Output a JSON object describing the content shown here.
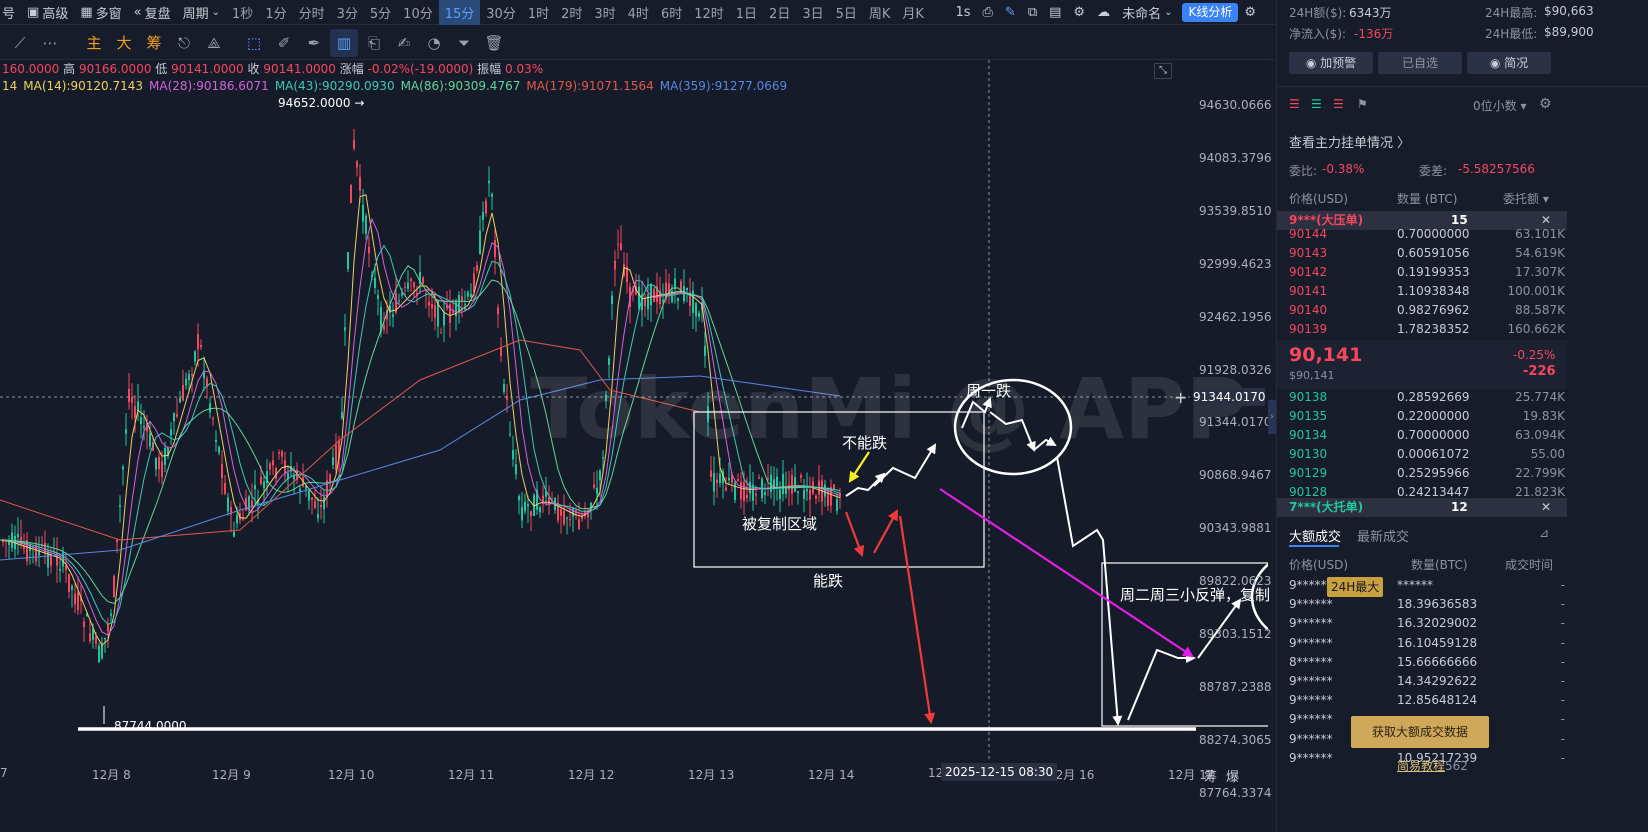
{
  "toolbar": {
    "left_cut": "号",
    "advanced": "高级",
    "multi_window": "多窗",
    "replay": "复盘",
    "period_label": "周期",
    "periods": [
      "1秒",
      "1分",
      "分时",
      "3分",
      "5分",
      "10分",
      "15分",
      "30分",
      "1时",
      "2时",
      "3时",
      "4时",
      "6时",
      "12时",
      "1日",
      "2日",
      "3日",
      "5日",
      "周K",
      "月K"
    ],
    "active_period": "15分",
    "interval_1s": "1s",
    "unnamed": "未命名",
    "k_analysis": "K线分析"
  },
  "drawbar": {
    "text_buttons": [
      "主",
      "大",
      "筹"
    ]
  },
  "chart": {
    "ohlc": {
      "open_cut": "160.0000",
      "high_label": "高",
      "high": "90166.0000",
      "low_label": "低",
      "low": "90141.0000",
      "close_label": "收",
      "close": "90141.0000",
      "change_label": "涨幅",
      "change": "-0.02%(-19.0000)",
      "amp_label": "振幅",
      "amp": "0.03%"
    },
    "ma": [
      {
        "text": "14",
        "color": "#f0d060"
      },
      {
        "text": "MA(14):90120.7143",
        "color": "#f0d060"
      },
      {
        "text": "MA(28):90186.6071",
        "color": "#d264d8"
      },
      {
        "text": "MA(43):90290.0930",
        "color": "#3ec7b8"
      },
      {
        "text": "MA(86):90309.4767",
        "color": "#62d39a"
      },
      {
        "text": "MA(179):91071.1564",
        "color": "#e0584c"
      },
      {
        "text": "MA(359):91277.0669",
        "color": "#5a86e0"
      }
    ],
    "y_ticks": [
      "94630.0666",
      "94083.3796",
      "93539.8510",
      "92999.4623",
      "92462.1956",
      "91928.0326",
      "91344.0170",
      "90868.9467",
      "90343.9881",
      "89822.0623",
      "89303.1512",
      "88787.2388",
      "88274.3065",
      "87764.3374"
    ],
    "x_ticks": [
      "7",
      "12月 8",
      "12月 9",
      "12月 10",
      "12月 11",
      "12月 12",
      "12月 13",
      "12月 14",
      "12",
      "12月 16",
      "12月 17"
    ],
    "crosshair_time": "2025-12-15 08:30",
    "crosshair_price": "91344.0170",
    "high_marker": "94652.0000 →",
    "low_marker": "87744.0000",
    "watermark": "TokenMi @ APP",
    "corner_labels": [
      "筹",
      "爆"
    ],
    "annotations": {
      "copied_region": "被复制区域",
      "cannot_fall": "不能跌",
      "can_fall": "能跌",
      "monday_fall": "周一跌",
      "tue_wed_rebound": "周二周三小反弹，复制",
      "day_max": "24H最大"
    }
  },
  "panel": {
    "vol24_label": "24H额($):",
    "vol24": "6343万",
    "high24_label": "24H最高:",
    "high24": "$90,663",
    "netflow_label": "净流入($):",
    "netflow": "-136万",
    "low24_label": "24H最低:",
    "low24": "$89,900",
    "buttons": [
      "加预警",
      "已自选",
      "简况"
    ],
    "decimals": "0位小数",
    "main_orders": "查看主力挂单情况 〉",
    "ratio_label": "委比:",
    "ratio": "-0.38%",
    "diff_label": "委差:",
    "diff": "-5.58257566",
    "col_price": "价格(USD)",
    "col_qty": "数量 (BTC)",
    "col_amount": "委托额",
    "big_ask_label": "9***(大压单)",
    "big_ask_count": "15",
    "asks": [
      {
        "price": "90144",
        "qty": "0.70000000",
        "amt": "63.101K"
      },
      {
        "price": "90143",
        "qty": "0.60591056",
        "amt": "54.619K"
      },
      {
        "price": "90142",
        "qty": "0.19199353",
        "amt": "17.307K"
      },
      {
        "price": "90141",
        "qty": "1.10938348",
        "amt": "100.001K"
      },
      {
        "price": "90140",
        "qty": "0.98276962",
        "amt": "88.587K"
      },
      {
        "price": "90139",
        "qty": "1.78238352",
        "amt": "160.662K"
      }
    ],
    "last_price": "90,141",
    "last_price_usd": "$90,141",
    "last_change_pct": "-0.25%",
    "last_change": "-226",
    "bids": [
      {
        "price": "90138",
        "qty": "0.28592669",
        "amt": "25.774K"
      },
      {
        "price": "90135",
        "qty": "0.22000000",
        "amt": "19.83K"
      },
      {
        "price": "90134",
        "qty": "0.70000000",
        "amt": "63.094K"
      },
      {
        "price": "90130",
        "qty": "0.00061072",
        "amt": "55.00"
      },
      {
        "price": "90129",
        "qty": "0.25295966",
        "amt": "22.799K"
      },
      {
        "price": "90128",
        "qty": "0.24213447",
        "amt": "21.823K"
      }
    ],
    "big_bid_label": "7***(大托单)",
    "big_bid_count": "12",
    "tab_big_trades": "大额成交",
    "tab_latest_trades": "最新成交",
    "trades_col_price": "价格(USD)",
    "trades_col_qty": "数量(BTC)",
    "trades_col_time": "成交时间",
    "trades": [
      {
        "price": "9******",
        "qty": "******",
        "time": "-"
      },
      {
        "price": "9******",
        "qty": "18.39636583",
        "time": "-"
      },
      {
        "price": "9******",
        "qty": "16.32029002",
        "time": "-"
      },
      {
        "price": "9******",
        "qty": "16.10459128",
        "time": "-"
      },
      {
        "price": "8******",
        "qty": "15.66666666",
        "time": "-"
      },
      {
        "price": "9******",
        "qty": "14.34292622",
        "time": "-"
      },
      {
        "price": "9******",
        "qty": "12.85648124",
        "time": "-"
      },
      {
        "price": "9******",
        "qty": "",
        "time": "-"
      },
      {
        "price": "9******",
        "qty": "",
        "time": "-"
      },
      {
        "price": "9******",
        "qty": "10.95217239",
        "time": "-"
      }
    ],
    "get_data_btn": "获取大额成交数据",
    "tutorial": "简易教程",
    "tutorial_tail": "562"
  }
}
